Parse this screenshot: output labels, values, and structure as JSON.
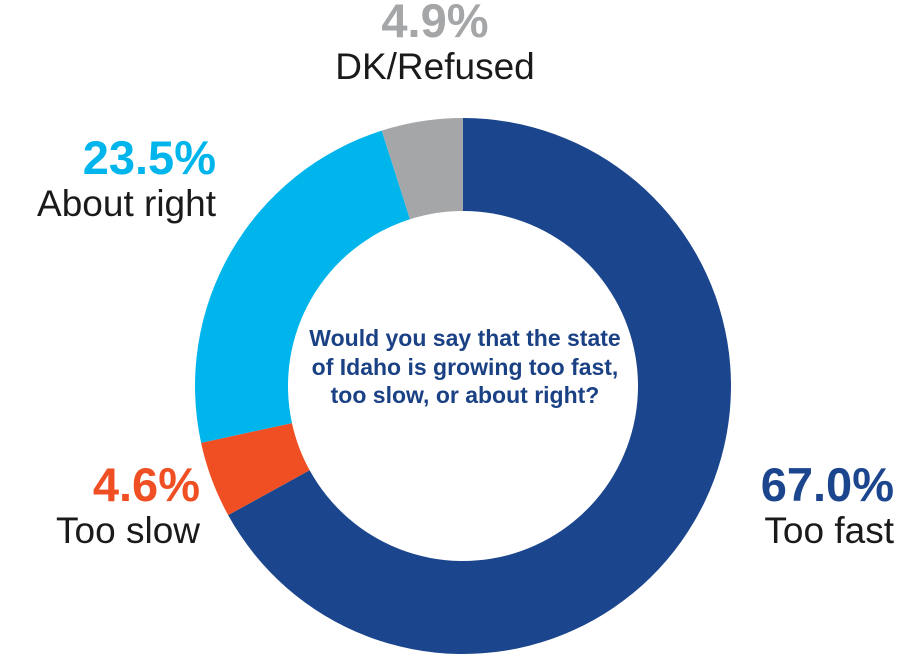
{
  "chart_data": {
    "type": "pie",
    "donut": true,
    "title": "Would you say that the state of Idaho is growing too fast, too slow, or about right?",
    "slices": [
      {
        "label": "Too fast",
        "value": 67.0,
        "value_label": "67.0%",
        "color": "#1b458d"
      },
      {
        "label": "Too slow",
        "value": 4.6,
        "value_label": "4.6%",
        "color": "#ef4f23"
      },
      {
        "label": "About right",
        "value": 23.5,
        "value_label": "23.5%",
        "color": "#00b5ec"
      },
      {
        "label": "DK/Refused",
        "value": 4.9,
        "value_label": "4.9%",
        "color": "#a5a6a8"
      }
    ]
  }
}
